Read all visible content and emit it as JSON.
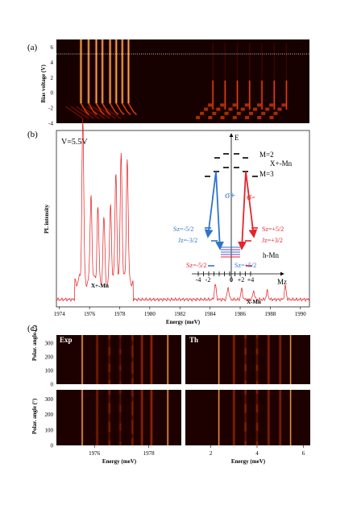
{
  "figure": {
    "panel_a": {
      "label": "(a)",
      "ylabel": "Bias voltage (V)",
      "yticks": [
        "6",
        "4",
        "2",
        "0",
        "-2",
        "-4"
      ],
      "ylim": [
        -4,
        7
      ],
      "x_range": [
        1974,
        1990.5
      ],
      "dotted_line_v": 5.5,
      "left_lines_e": [
        1975.6,
        1976.1,
        1976.6,
        1977.0,
        1977.5,
        1977.9,
        1978.3,
        1978.7
      ],
      "right_lines_e": [
        1984.2,
        1985.0,
        1985.8,
        1986.6,
        1987.4,
        1988.2,
        1989.0
      ]
    },
    "panel_b": {
      "label": "(b)",
      "voltage_label": "V=5.5V",
      "ylabel": "PL intensity",
      "xlabel": "Energy (meV)",
      "xticks": [
        "1974",
        "1976",
        "1978",
        "1980",
        "1982",
        "1984",
        "1986",
        "1988",
        "1990"
      ],
      "xlim": [
        1973.8,
        1990.6
      ],
      "label_xmn_left": "X+-Mn",
      "label_xmn_right": "X-Mn",
      "peaks": [
        {
          "e": 1975.55,
          "h": 0.97
        },
        {
          "e": 1976.1,
          "h": 0.52
        },
        {
          "e": 1976.55,
          "h": 0.44
        },
        {
          "e": 1976.95,
          "h": 0.36
        },
        {
          "e": 1977.4,
          "h": 0.46
        },
        {
          "e": 1977.75,
          "h": 0.66
        },
        {
          "e": 1978.1,
          "h": 0.78
        },
        {
          "e": 1978.5,
          "h": 0.74
        },
        {
          "e": 1984.35,
          "h": 0.09
        },
        {
          "e": 1985.2,
          "h": 0.07
        },
        {
          "e": 1986.1,
          "h": 0.06
        },
        {
          "e": 1986.9,
          "h": 0.05
        },
        {
          "e": 1987.8,
          "h": 0.05
        },
        {
          "e": 1989.0,
          "h": 0.08
        }
      ],
      "diagram": {
        "e_axis": "E",
        "m2": "M=2",
        "m3": "M=3",
        "xmn": "X+-Mn",
        "sigma_plus": "σ+",
        "sigma_minus": "σ-",
        "sz_minus_top": "Sz=-5/2",
        "jz_minus": "Jz=-3/2",
        "sz_plus_top": "Sz=+5/2",
        "jz_plus": "Jz=+3/2",
        "hmn": "h-Mn",
        "sz_minus_bottom": "Sz=-5/2",
        "sz_plus_bottom": "Sz=+5/2",
        "mz_ticks": [
          "-4",
          "-2",
          "0",
          "+2",
          "+4"
        ],
        "mz_label": "Mz",
        "blue": "#2f74c9",
        "red": "#e5252a"
      }
    },
    "panel_c": {
      "label": "(c)",
      "exp_label": "Exp",
      "th_label": "Th",
      "ylabel": "Polar. angle (°)",
      "yticks": [
        "300",
        "200",
        "100",
        "0"
      ],
      "left_xticks": [
        "1976",
        "1978"
      ],
      "right_xticks": [
        "2",
        "4",
        "6"
      ],
      "xlabel_left": "Energy (meV)",
      "xlabel_right": "Energy (meV)"
    },
    "colors": {
      "dark": "#170000",
      "line": "#ff3a00",
      "bright": "#ffe07a",
      "curve": "#e8181c"
    }
  }
}
